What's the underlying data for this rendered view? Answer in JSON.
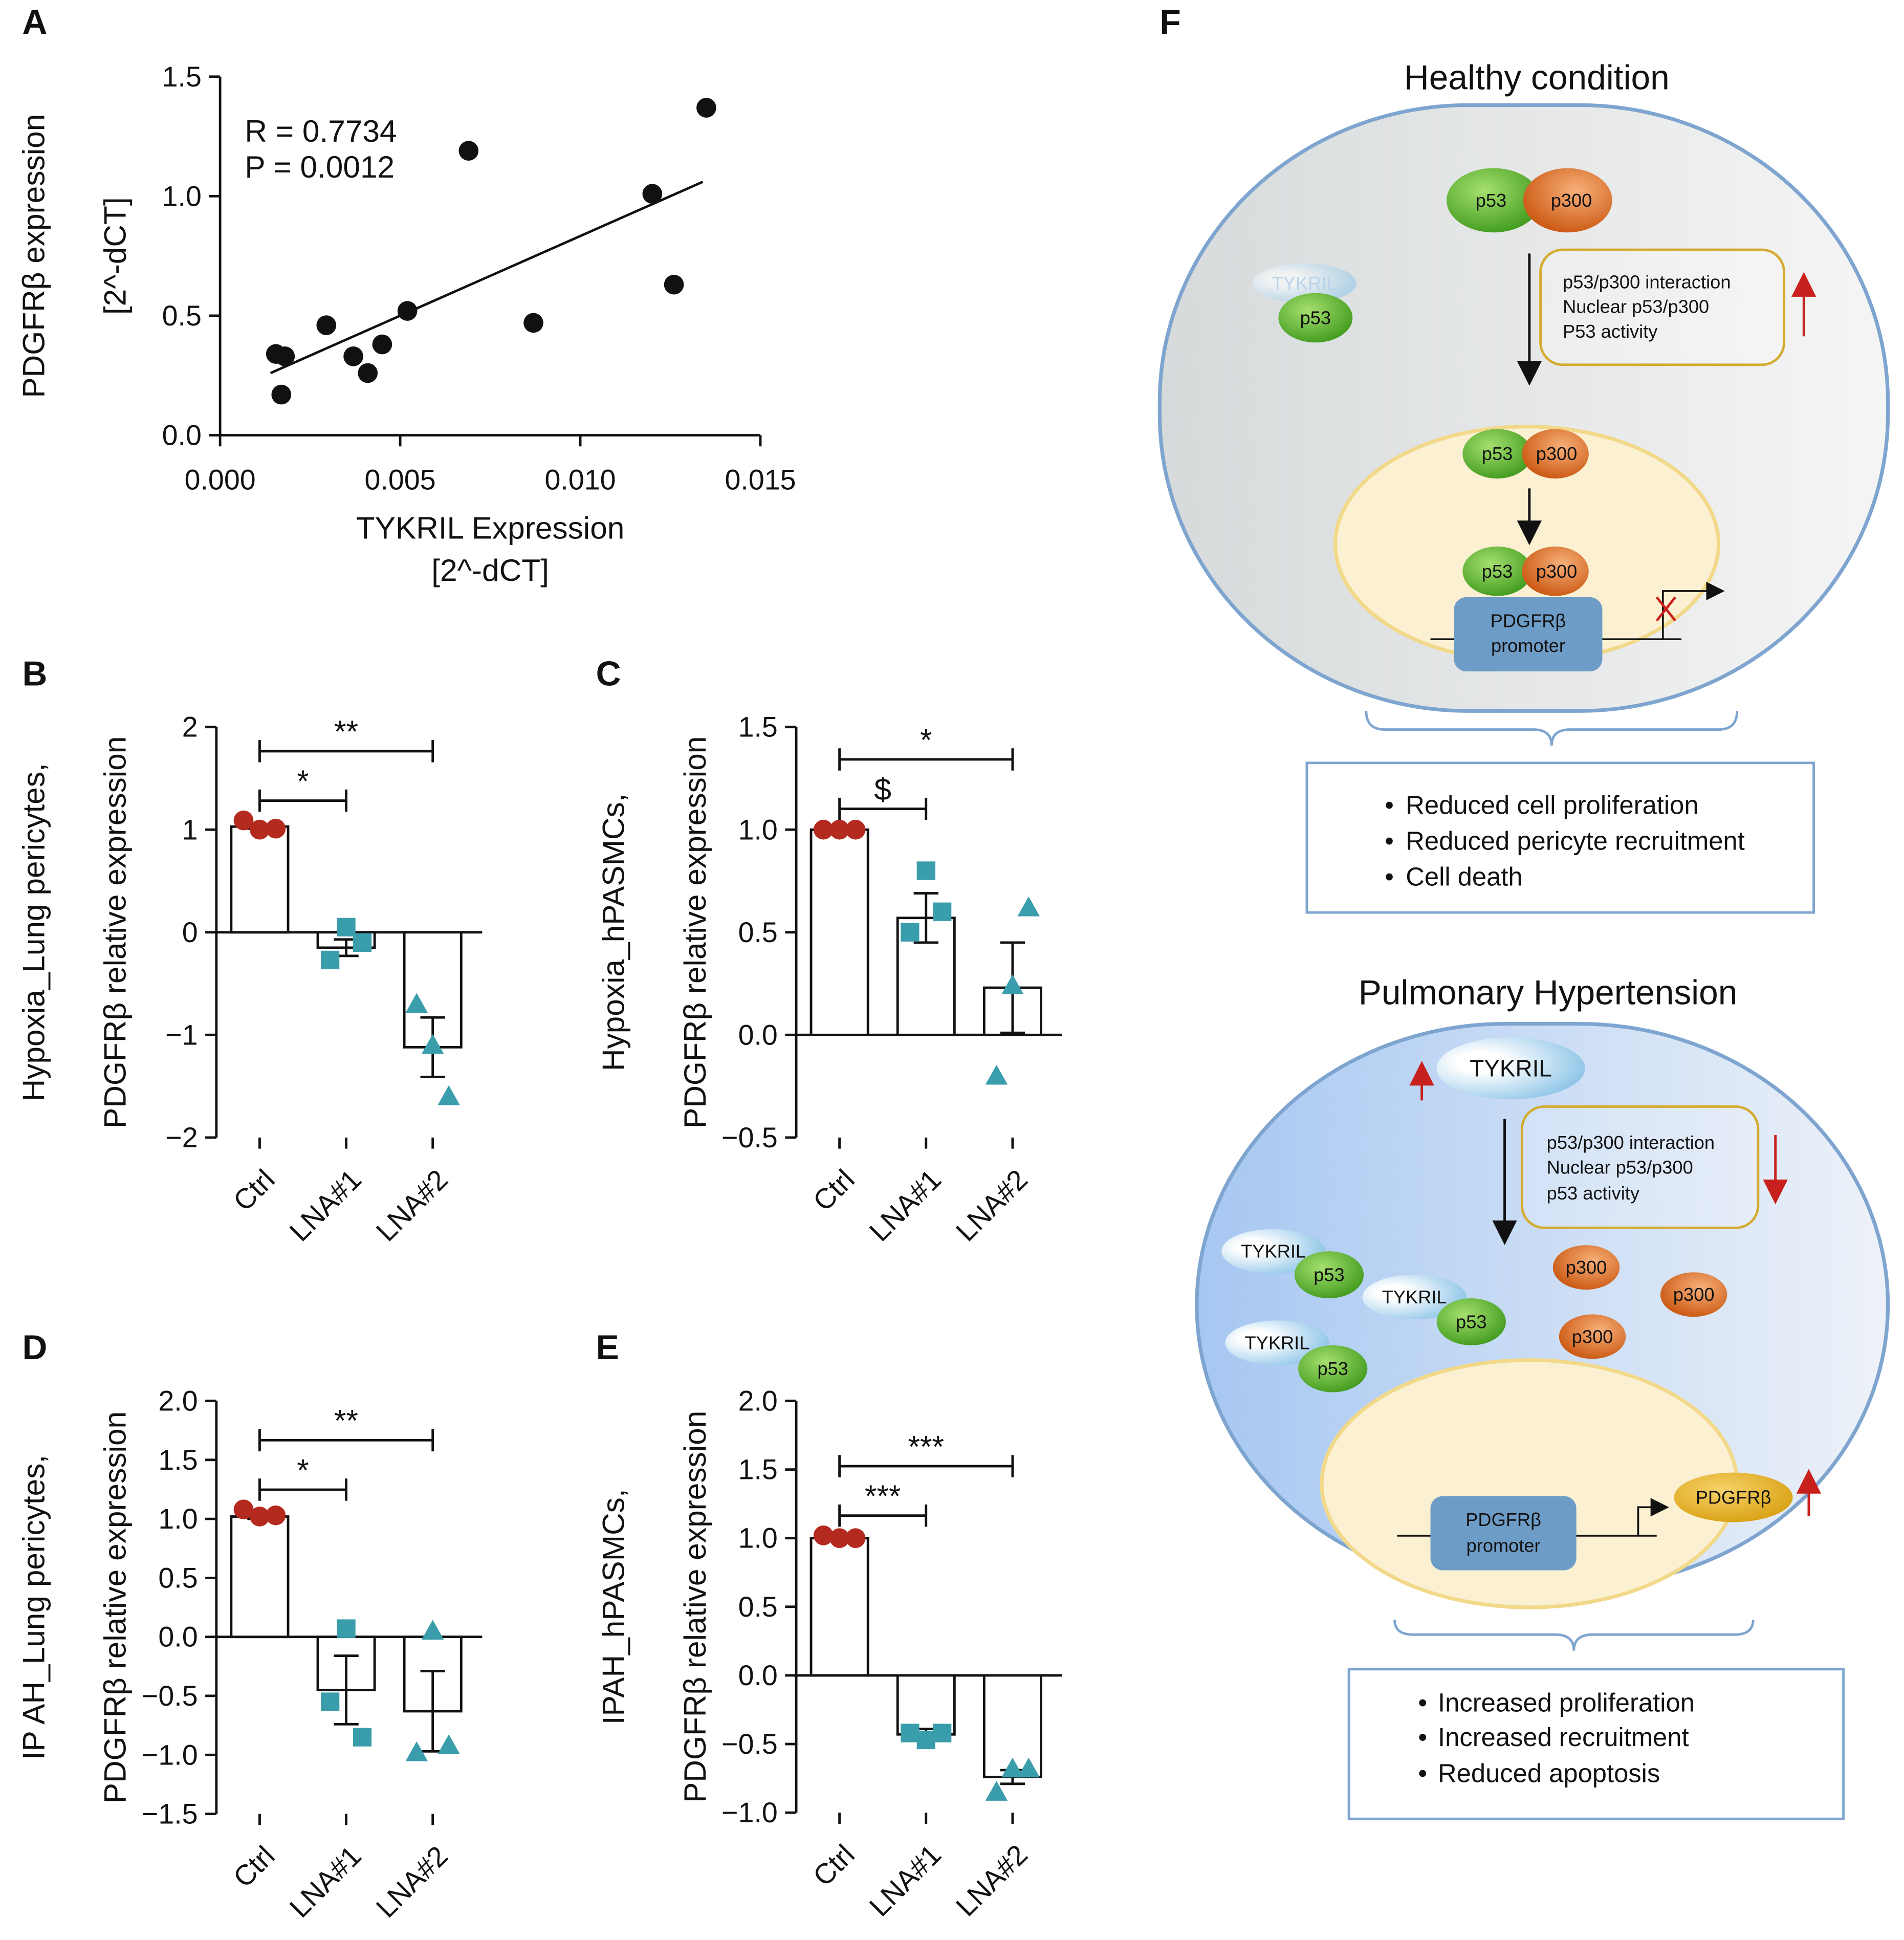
{
  "chart_data": [
    {
      "panel": "A",
      "type": "scatter",
      "x": [
        0.00155,
        0.0018,
        0.0017,
        0.00295,
        0.0037,
        0.0041,
        0.0045,
        0.0052,
        0.0069,
        0.0087,
        0.012,
        0.0126,
        0.0135
      ],
      "y": [
        0.34,
        0.33,
        0.17,
        0.46,
        0.33,
        0.26,
        0.38,
        0.52,
        1.19,
        0.47,
        1.01,
        0.63,
        1.37
      ],
      "color": "#111111",
      "trend_line": {
        "x": [
          0.0014,
          0.0134
        ],
        "y": [
          0.26,
          1.06
        ]
      },
      "annotations": [
        "R = 0.7734",
        "P = 0.0012"
      ],
      "xlabel": [
        "TYKRIL Expression",
        "[2^-dCT]"
      ],
      "ylabel": [
        "PDGFRβ expression",
        "[2^-dCT]"
      ],
      "xlim": [
        0,
        0.015
      ],
      "xticks": [
        {
          "value": 0,
          "label": "0.000"
        },
        0.005,
        {
          "value": 0.01,
          "label": "0.010"
        },
        0.015
      ],
      "ylim": [
        0,
        1.5
      ],
      "yticks": [
        {
          "value": 0,
          "label": "0.0"
        },
        0.5,
        {
          "value": 1,
          "label": "1.0"
        },
        1.5
      ]
    },
    {
      "panel": "B",
      "type": "bar",
      "categories": [
        "Ctrl",
        "LNA#1",
        "LNA#2"
      ],
      "values": [
        1.03,
        -0.15,
        -1.12
      ],
      "errors": [
        0.02,
        0.08,
        0.29
      ],
      "points": [
        [
          1.09,
          1.0,
          1.01
        ],
        [
          -0.27,
          0.05,
          -0.1
        ],
        [
          -0.7,
          -1.1,
          -1.6
        ]
      ],
      "markers": [
        "circle",
        "square",
        "triangle"
      ],
      "point_colors": [
        "#b52a1e",
        "#3a9dab",
        "#3a9dab"
      ],
      "brackets": [
        {
          "between": [
            "Ctrl",
            "LNA#1"
          ],
          "label": "*"
        },
        {
          "between": [
            "Ctrl",
            "LNA#2"
          ],
          "label": "**"
        }
      ],
      "ylabel": [
        "Hypoxia_Lung pericytes,",
        "PDGFRβ relative expression"
      ],
      "ylim": [
        -2,
        2
      ],
      "yticks": [
        {
          "value": -2,
          "label": "−2"
        },
        {
          "value": -1,
          "label": "−1"
        },
        0,
        1,
        2
      ]
    },
    {
      "panel": "C",
      "type": "bar",
      "categories": [
        "Ctrl",
        "LNA#1",
        "LNA#2"
      ],
      "values": [
        1.0,
        0.57,
        0.23
      ],
      "errors": [
        0.005,
        0.12,
        0.22
      ],
      "points": [
        [
          1.0,
          1.0,
          1.0
        ],
        [
          0.5,
          0.8,
          0.6
        ],
        [
          -0.2,
          0.24,
          0.62
        ]
      ],
      "markers": [
        "circle",
        "square",
        "triangle"
      ],
      "point_colors": [
        "#b52a1e",
        "#3a9dab",
        "#3a9dab"
      ],
      "brackets": [
        {
          "between": [
            "Ctrl",
            "LNA#1"
          ],
          "label": "$"
        },
        {
          "between": [
            "Ctrl",
            "LNA#2"
          ],
          "label": "*"
        }
      ],
      "ylabel": [
        "Hypoxia_hPASMCs,",
        "PDGFRβ relative expression"
      ],
      "ylim": [
        -0.5,
        1.5
      ],
      "yticks": [
        {
          "value": -0.5,
          "label": "−0.5"
        },
        {
          "value": 0,
          "label": "0.0"
        },
        0.5,
        {
          "value": 1,
          "label": "1.0"
        },
        1.5
      ]
    },
    {
      "panel": "D",
      "type": "bar",
      "categories": [
        "Ctrl",
        "LNA#1",
        "LNA#2"
      ],
      "values": [
        1.02,
        -0.45,
        -0.63
      ],
      "errors": [
        0.02,
        0.29,
        0.34
      ],
      "points": [
        [
          1.08,
          1.02,
          1.03
        ],
        [
          -0.55,
          0.07,
          -0.85
        ],
        [
          -0.98,
          0.05,
          -0.92
        ]
      ],
      "markers": [
        "circle",
        "square",
        "triangle"
      ],
      "point_colors": [
        "#b52a1e",
        "#3a9dab",
        "#3a9dab"
      ],
      "brackets": [
        {
          "between": [
            "Ctrl",
            "LNA#1"
          ],
          "label": "*"
        },
        {
          "between": [
            "Ctrl",
            "LNA#2"
          ],
          "label": "**"
        }
      ],
      "ylabel": [
        "IP AH_Lung pericytes,",
        "PDGFRβ relative expression"
      ],
      "ylim": [
        -1.5,
        2
      ],
      "yticks": [
        {
          "value": -1.5,
          "label": "−1.5"
        },
        {
          "value": -1,
          "label": "−1.0"
        },
        {
          "value": -0.5,
          "label": "−0.5"
        },
        {
          "value": 0,
          "label": "0.0"
        },
        0.5,
        {
          "value": 1,
          "label": "1.0"
        },
        1.5,
        {
          "value": 2,
          "label": "2.0"
        }
      ]
    },
    {
      "panel": "E",
      "type": "bar",
      "categories": [
        "Ctrl",
        "LNA#1",
        "LNA#2"
      ],
      "values": [
        1.0,
        -0.43,
        -0.74
      ],
      "errors": [
        0.01,
        0.04,
        0.05
      ],
      "points": [
        [
          1.02,
          1.0,
          1.0
        ],
        [
          -0.42,
          -0.47,
          -0.42
        ],
        [
          -0.85,
          -0.68,
          -0.68
        ]
      ],
      "markers": [
        "circle",
        "square",
        "triangle"
      ],
      "point_colors": [
        "#b52a1e",
        "#3a9dab",
        "#3a9dab"
      ],
      "brackets": [
        {
          "between": [
            "Ctrl",
            "LNA#1"
          ],
          "label": "***"
        },
        {
          "between": [
            "Ctrl",
            "LNA#2"
          ],
          "label": "***"
        }
      ],
      "ylabel": [
        "IPAH_hPASMCs,",
        "PDGFRβ relative expression"
      ],
      "ylim": [
        -1,
        2
      ],
      "yticks": [
        {
          "value": -1,
          "label": "−1.0"
        },
        {
          "value": -0.5,
          "label": "−0.5"
        },
        {
          "value": 0,
          "label": "0.0"
        },
        0.5,
        {
          "value": 1,
          "label": "1.0"
        },
        1.5,
        {
          "value": 2,
          "label": "2.0"
        }
      ]
    }
  ],
  "diagram": {
    "panel": "F",
    "healthy": {
      "title": "Healthy condition",
      "p53": "p53",
      "p300": "p300",
      "tykril": "TYKRIL",
      "effects": [
        "p53/p300 interaction",
        "Nuclear p53/p300",
        "P53 activity"
      ],
      "promoter": [
        "PDGFRβ",
        "promoter"
      ],
      "outcomes": [
        "Reduced cell proliferation",
        "Reduced pericyte recruitment",
        "Cell death"
      ]
    },
    "disease": {
      "title": "Pulmonary Hypertension",
      "p53": "p53",
      "p300": "p300",
      "tykril": "TYKRIL",
      "effects": [
        "p53/p300 interaction",
        "Nuclear p53/p300",
        "p53 activity"
      ],
      "promoter": [
        "PDGFRβ",
        "promoter"
      ],
      "product": "PDGFRβ",
      "outcomes": [
        "Increased proliferation",
        "Increased recruitment",
        "Reduced apoptosis"
      ]
    }
  }
}
